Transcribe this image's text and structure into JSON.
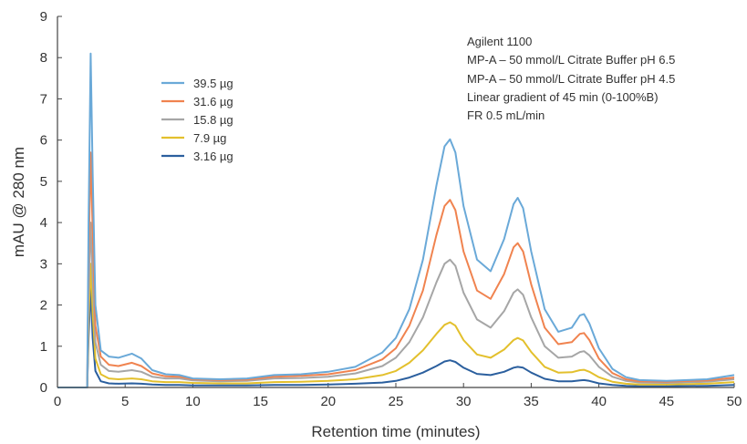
{
  "chart_data": {
    "type": "line",
    "xlabel": "Retention time (minutes)",
    "ylabel": "mAU @ 280 nm",
    "xlim": [
      0,
      50
    ],
    "ylim": [
      0,
      9
    ],
    "xticks": [
      0,
      5,
      10,
      15,
      20,
      25,
      30,
      35,
      40,
      45,
      50
    ],
    "yticks": [
      0,
      1,
      2,
      3,
      4,
      5,
      6,
      7,
      8,
      9
    ],
    "grid": false,
    "legend_position": "top-left",
    "annotation_lines": [
      "Agilent 1100",
      "MP-A – 50 mmol/L Citrate Buffer pH 6.5",
      "MP-A – 50 mmol/L Citrate Buffer pH 4.5",
      "Linear gradient of 45 min (0-100%B)",
      "FR 0.5 mL/min"
    ],
    "series": [
      {
        "name": "39.5 µg",
        "color": "#6aa9d8",
        "x": [
          0,
          2.2,
          2.3,
          2.45,
          2.6,
          2.8,
          3.2,
          3.8,
          4.5,
          5.5,
          6.2,
          7,
          8,
          9,
          10,
          12,
          14,
          16,
          18,
          20,
          22,
          24,
          25,
          26,
          27,
          28,
          28.6,
          29,
          29.4,
          30,
          31,
          32,
          33,
          33.7,
          34,
          34.4,
          35,
          36,
          37,
          38,
          38.6,
          38.9,
          39.3,
          40,
          41,
          42,
          43,
          45,
          48,
          50
        ],
        "y": [
          0,
          0,
          4.0,
          8.1,
          5.2,
          2.0,
          0.9,
          0.75,
          0.72,
          0.82,
          0.7,
          0.42,
          0.32,
          0.3,
          0.22,
          0.2,
          0.22,
          0.3,
          0.32,
          0.38,
          0.5,
          0.85,
          1.2,
          1.9,
          3.1,
          4.9,
          5.85,
          6.02,
          5.7,
          4.4,
          3.1,
          2.82,
          3.6,
          4.45,
          4.6,
          4.35,
          3.3,
          1.9,
          1.35,
          1.45,
          1.75,
          1.78,
          1.55,
          0.95,
          0.45,
          0.25,
          0.18,
          0.16,
          0.2,
          0.3
        ]
      },
      {
        "name": "31.6 µg",
        "color": "#f0834f",
        "x": [
          0,
          2.2,
          2.3,
          2.45,
          2.6,
          2.8,
          3.2,
          3.8,
          4.5,
          5.5,
          6.2,
          7,
          8,
          9,
          10,
          12,
          14,
          16,
          18,
          20,
          22,
          24,
          25,
          26,
          27,
          28,
          28.6,
          29,
          29.4,
          30,
          31,
          32,
          33,
          33.7,
          34,
          34.4,
          35,
          36,
          37,
          38,
          38.6,
          38.9,
          39.3,
          40,
          41,
          42,
          43,
          45,
          48,
          50
        ],
        "y": [
          0,
          0,
          3.0,
          5.7,
          3.8,
          1.5,
          0.75,
          0.55,
          0.52,
          0.6,
          0.52,
          0.34,
          0.27,
          0.26,
          0.2,
          0.18,
          0.19,
          0.26,
          0.28,
          0.32,
          0.42,
          0.68,
          0.95,
          1.5,
          2.35,
          3.7,
          4.4,
          4.55,
          4.3,
          3.3,
          2.35,
          2.15,
          2.75,
          3.4,
          3.5,
          3.3,
          2.5,
          1.45,
          1.05,
          1.1,
          1.3,
          1.32,
          1.15,
          0.7,
          0.35,
          0.2,
          0.15,
          0.14,
          0.17,
          0.24
        ]
      },
      {
        "name": "15.8 µg",
        "color": "#a6a6a6",
        "x": [
          0,
          2.2,
          2.3,
          2.45,
          2.6,
          2.8,
          3.2,
          3.8,
          4.5,
          5.5,
          6.2,
          7,
          8,
          9,
          10,
          12,
          14,
          16,
          18,
          20,
          22,
          24,
          25,
          26,
          27,
          28,
          28.6,
          29,
          29.4,
          30,
          31,
          32,
          33,
          33.7,
          34,
          34.4,
          35,
          36,
          37,
          38,
          38.6,
          38.9,
          39.3,
          40,
          41,
          42,
          43,
          45,
          48,
          50
        ],
        "y": [
          0,
          0,
          2.2,
          4.0,
          2.6,
          1.1,
          0.55,
          0.4,
          0.38,
          0.42,
          0.38,
          0.26,
          0.22,
          0.22,
          0.17,
          0.15,
          0.16,
          0.22,
          0.23,
          0.26,
          0.34,
          0.52,
          0.72,
          1.1,
          1.7,
          2.55,
          3.0,
          3.1,
          2.95,
          2.3,
          1.65,
          1.45,
          1.85,
          2.3,
          2.38,
          2.25,
          1.7,
          1.0,
          0.72,
          0.75,
          0.86,
          0.88,
          0.78,
          0.5,
          0.26,
          0.16,
          0.12,
          0.11,
          0.14,
          0.2
        ]
      },
      {
        "name": "7.9 µg",
        "color": "#e3c02d",
        "x": [
          0,
          2.2,
          2.3,
          2.45,
          2.6,
          2.8,
          3.2,
          3.8,
          4.5,
          5.5,
          6.2,
          7,
          8,
          9,
          10,
          12,
          14,
          16,
          18,
          20,
          22,
          24,
          25,
          26,
          27,
          28,
          28.6,
          29,
          29.4,
          30,
          31,
          32,
          33,
          33.7,
          34,
          34.4,
          35,
          36,
          37,
          38,
          38.6,
          38.9,
          39.3,
          40,
          41,
          42,
          43,
          45,
          48,
          50
        ],
        "y": [
          0,
          0,
          1.6,
          3.0,
          1.8,
          0.7,
          0.32,
          0.22,
          0.2,
          0.22,
          0.2,
          0.15,
          0.13,
          0.13,
          0.11,
          0.1,
          0.1,
          0.13,
          0.14,
          0.16,
          0.2,
          0.3,
          0.4,
          0.6,
          0.9,
          1.3,
          1.52,
          1.58,
          1.5,
          1.15,
          0.8,
          0.72,
          0.92,
          1.15,
          1.2,
          1.14,
          0.86,
          0.5,
          0.36,
          0.37,
          0.42,
          0.43,
          0.38,
          0.25,
          0.14,
          0.09,
          0.07,
          0.07,
          0.09,
          0.13
        ]
      },
      {
        "name": "3.16 µg",
        "color": "#2b5f9e",
        "x": [
          0,
          2.2,
          2.3,
          2.45,
          2.6,
          2.8,
          3.2,
          3.8,
          4.5,
          5.5,
          6.2,
          7,
          8,
          9,
          10,
          12,
          14,
          16,
          18,
          20,
          22,
          24,
          25,
          26,
          27,
          28,
          28.6,
          29,
          29.4,
          30,
          31,
          32,
          33,
          33.7,
          34,
          34.4,
          35,
          36,
          37,
          38,
          38.6,
          38.9,
          39.3,
          40,
          41,
          42,
          43,
          45,
          48,
          50
        ],
        "y": [
          0,
          0,
          1.2,
          2.4,
          1.2,
          0.4,
          0.15,
          0.1,
          0.09,
          0.1,
          0.09,
          0.07,
          0.06,
          0.06,
          0.05,
          0.05,
          0.05,
          0.06,
          0.06,
          0.07,
          0.09,
          0.12,
          0.16,
          0.24,
          0.36,
          0.52,
          0.63,
          0.66,
          0.62,
          0.48,
          0.33,
          0.3,
          0.38,
          0.48,
          0.5,
          0.48,
          0.36,
          0.21,
          0.15,
          0.15,
          0.17,
          0.18,
          0.16,
          0.1,
          0.06,
          0.04,
          0.03,
          0.03,
          0.04,
          0.06
        ]
      }
    ]
  }
}
